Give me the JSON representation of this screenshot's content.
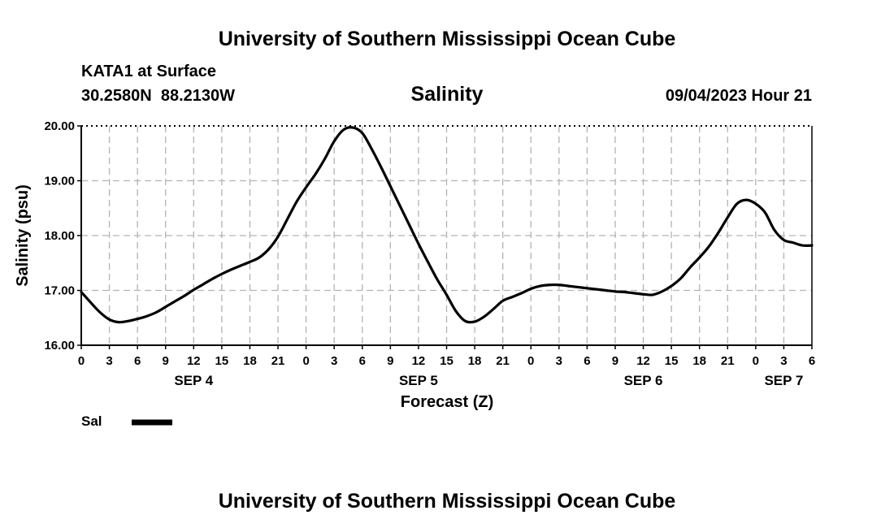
{
  "header": {
    "title": "University of Southern Mississippi Ocean Cube",
    "station": "KATA1 at Surface",
    "coords": "30.2580N  88.2130W",
    "datetime": "09/04/2023 Hour 21",
    "footer_title": "University of Southern Mississippi Ocean Cube"
  },
  "chart_data": {
    "type": "line",
    "title": "Salinity",
    "xlabel": "Forecast (Z)",
    "ylabel": "Salinity (psu)",
    "ylim": [
      16.0,
      20.0
    ],
    "y_ticks": [
      "16.00",
      "17.00",
      "18.00",
      "19.00",
      "20.00"
    ],
    "x_tick_labels": [
      "0",
      "3",
      "6",
      "9",
      "12",
      "15",
      "18",
      "21",
      "0",
      "3",
      "6",
      "9",
      "12",
      "15",
      "18",
      "21",
      "0",
      "3",
      "6",
      "9",
      "12",
      "15",
      "18",
      "21",
      "0",
      "3",
      "6"
    ],
    "day_labels": [
      {
        "label": "SEP 4",
        "hour": 12
      },
      {
        "label": "SEP 5",
        "hour": 36
      },
      {
        "label": "SEP 6",
        "hour": 60
      },
      {
        "label": "SEP 7",
        "hour": 75
      }
    ],
    "grid": true,
    "legend_position": "bottom-left",
    "series": [
      {
        "name": "Sal",
        "color": "#000000",
        "x_hours": [
          0,
          1,
          2,
          3,
          4,
          5,
          6,
          7,
          8,
          9,
          10,
          11,
          12,
          13,
          14,
          15,
          16,
          17,
          18,
          19,
          20,
          21,
          22,
          23,
          24,
          25,
          26,
          27,
          28,
          29,
          30,
          31,
          32,
          33,
          34,
          35,
          36,
          37,
          38,
          39,
          40,
          41,
          42,
          43,
          44,
          45,
          46,
          47,
          48,
          49,
          50,
          51,
          52,
          53,
          54,
          55,
          56,
          57,
          58,
          59,
          60,
          61,
          62,
          63,
          64,
          65,
          66,
          67,
          68,
          69,
          70,
          71,
          72,
          73,
          74,
          75,
          76,
          77,
          78
        ],
        "values": [
          16.97,
          16.78,
          16.6,
          16.47,
          16.42,
          16.44,
          16.48,
          16.53,
          16.6,
          16.7,
          16.8,
          16.9,
          17.01,
          17.11,
          17.21,
          17.3,
          17.38,
          17.45,
          17.52,
          17.6,
          17.75,
          17.98,
          18.3,
          18.62,
          18.88,
          19.12,
          19.4,
          19.72,
          19.93,
          19.97,
          19.87,
          19.58,
          19.25,
          18.9,
          18.55,
          18.2,
          17.85,
          17.52,
          17.2,
          16.92,
          16.62,
          16.44,
          16.43,
          16.52,
          16.66,
          16.81,
          16.88,
          16.95,
          17.03,
          17.08,
          17.1,
          17.1,
          17.08,
          17.06,
          17.04,
          17.02,
          17.0,
          16.98,
          16.97,
          16.95,
          16.93,
          16.92,
          16.98,
          17.08,
          17.22,
          17.42,
          17.6,
          17.8,
          18.05,
          18.33,
          18.58,
          18.65,
          18.58,
          18.42,
          18.1,
          17.92,
          17.87,
          17.82,
          17.82
        ]
      }
    ]
  }
}
